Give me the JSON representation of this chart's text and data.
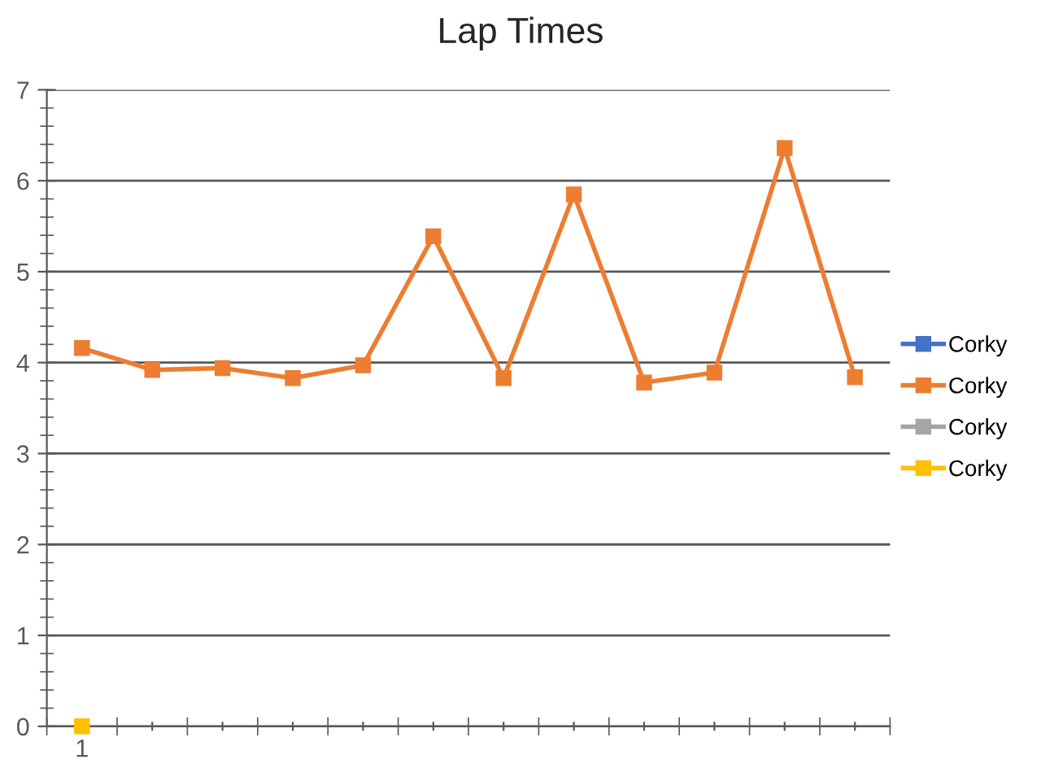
{
  "chart_data": {
    "type": "line",
    "title": "Lap Times",
    "categories": [
      "1",
      null,
      null,
      null,
      null,
      null,
      null,
      null,
      null,
      null,
      null,
      null
    ],
    "series": [
      {
        "name": "Corky",
        "color": "#4472c4",
        "values": [
          null,
          null,
          null,
          null,
          null,
          null,
          null,
          null,
          null,
          null,
          null,
          null
        ]
      },
      {
        "name": "Corky",
        "color": "#ed7d31",
        "values": [
          4.16,
          3.92,
          3.94,
          3.83,
          3.97,
          5.39,
          3.83,
          5.85,
          3.78,
          3.89,
          6.36,
          3.84
        ]
      },
      {
        "name": "Corky",
        "color": "#a5a5a5",
        "values": [
          null,
          null,
          null,
          null,
          null,
          null,
          null,
          null,
          null,
          null,
          null,
          null
        ]
      },
      {
        "name": "Corky",
        "color": "#ffc000",
        "values": [
          0,
          null,
          null,
          null,
          null,
          null,
          null,
          null,
          null,
          null,
          null,
          null
        ]
      }
    ],
    "ylim": [
      0,
      7
    ],
    "yticks": [
      0,
      1,
      2,
      3,
      4,
      5,
      6,
      7
    ],
    "grid": "y",
    "legend": "right",
    "marker": "square",
    "line_style": "solid"
  }
}
